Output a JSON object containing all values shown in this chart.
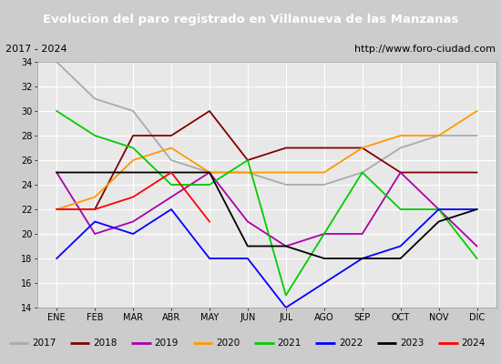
{
  "title": "Evolucion del paro registrado en Villanueva de las Manzanas",
  "subtitle_left": "2017 - 2024",
  "subtitle_right": "http://www.foro-ciudad.com",
  "months": [
    "ENE",
    "FEB",
    "MAR",
    "ABR",
    "MAY",
    "JUN",
    "JUL",
    "AGO",
    "SEP",
    "OCT",
    "NOV",
    "DIC"
  ],
  "ylim": [
    14,
    34
  ],
  "yticks": [
    14,
    16,
    18,
    20,
    22,
    24,
    26,
    28,
    30,
    32,
    34
  ],
  "series": {
    "2017": {
      "color": "#aaaaaa",
      "data": [
        34,
        31,
        30,
        26,
        25,
        25,
        24,
        24,
        25,
        27,
        28,
        28
      ]
    },
    "2018": {
      "color": "#800000",
      "data": [
        22,
        22,
        28,
        28,
        30,
        26,
        27,
        27,
        27,
        25,
        25,
        25
      ]
    },
    "2019": {
      "color": "#aa00aa",
      "data": [
        25,
        20,
        21,
        23,
        25,
        21,
        19,
        20,
        20,
        25,
        22,
        19
      ]
    },
    "2020": {
      "color": "#ff9900",
      "data": [
        22,
        23,
        26,
        27,
        25,
        25,
        25,
        25,
        27,
        28,
        28,
        30
      ]
    },
    "2021": {
      "color": "#00cc00",
      "data": [
        30,
        28,
        27,
        24,
        24,
        26,
        15,
        20,
        25,
        22,
        22,
        18
      ]
    },
    "2022": {
      "color": "#0000ff",
      "data": [
        18,
        21,
        20,
        22,
        18,
        18,
        14,
        16,
        18,
        19,
        22,
        22
      ]
    },
    "2023": {
      "color": "#000000",
      "data": [
        25,
        25,
        25,
        25,
        25,
        19,
        19,
        18,
        18,
        18,
        21,
        22
      ]
    },
    "2024": {
      "color": "#ff0000",
      "data": [
        22,
        22,
        23,
        25,
        21,
        null,
        null,
        null,
        null,
        null,
        null,
        null
      ]
    }
  },
  "title_bg_color": "#336699",
  "title_color": "#ffffff",
  "plot_bg_color": "#e8e8e8",
  "grid_color": "#ffffff",
  "subtitle_bg_color": "#dddddd",
  "legend_bg_color": "#f0f0f0",
  "title_fontsize": 9.5,
  "subtitle_fontsize": 8,
  "tick_fontsize": 7,
  "legend_fontsize": 7.5
}
